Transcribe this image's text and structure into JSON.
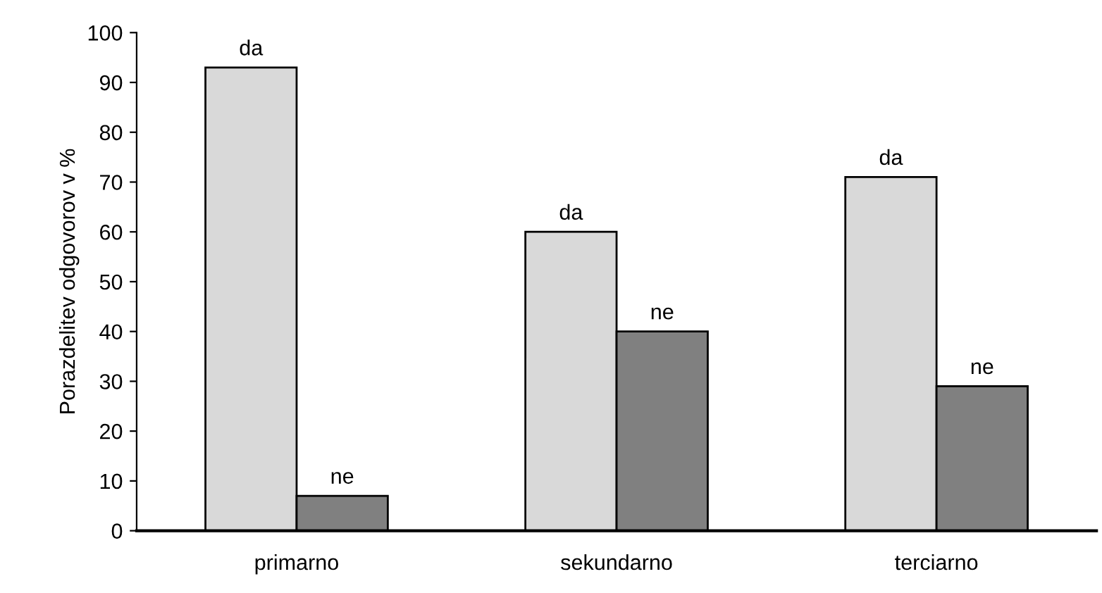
{
  "chart_data": {
    "type": "bar",
    "ylabel": "Porazdelitev odgovorov v %",
    "categories": [
      "primarno",
      "sekundarno",
      "terciarno"
    ],
    "series": [
      {
        "name": "da",
        "color": "#d9d9d9",
        "values": [
          93,
          60,
          71
        ]
      },
      {
        "name": "ne",
        "color": "#808080",
        "values": [
          7,
          40,
          29
        ]
      }
    ],
    "ylim": [
      0,
      100
    ],
    "yticks": [
      0,
      10,
      20,
      30,
      40,
      50,
      60,
      70,
      80,
      90,
      100
    ],
    "grid": false,
    "legend": false
  }
}
